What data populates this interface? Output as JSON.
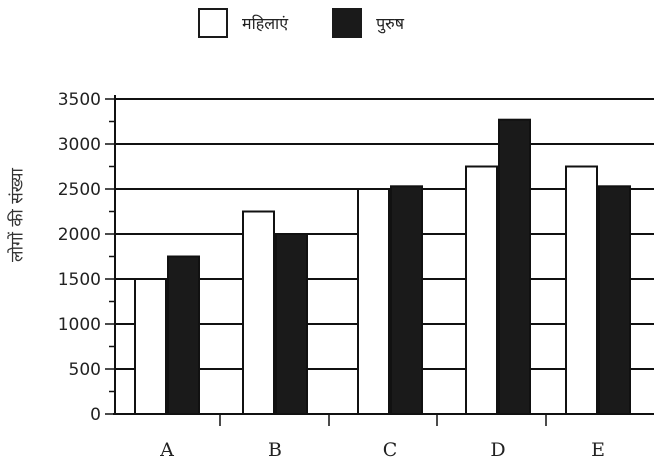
{
  "chart_data": {
    "type": "bar",
    "title": "",
    "xlabel": "",
    "ylabel": "लोगों की संख्या",
    "categories": [
      "A",
      "B",
      "C",
      "D",
      "E"
    ],
    "series": [
      {
        "name": "महिलाएं",
        "values": [
          1500,
          2250,
          2500,
          2750,
          2750
        ],
        "color": "#ffffff"
      },
      {
        "name": "पुरुष",
        "values": [
          1750,
          2000,
          2530,
          3270,
          2530
        ],
        "color": "#1a1a1a"
      }
    ],
    "yticks": [
      0,
      500,
      1000,
      1500,
      2000,
      2500,
      3000,
      3500
    ],
    "ylim": [
      0,
      3500
    ],
    "grid": true,
    "legend": "top-center"
  }
}
